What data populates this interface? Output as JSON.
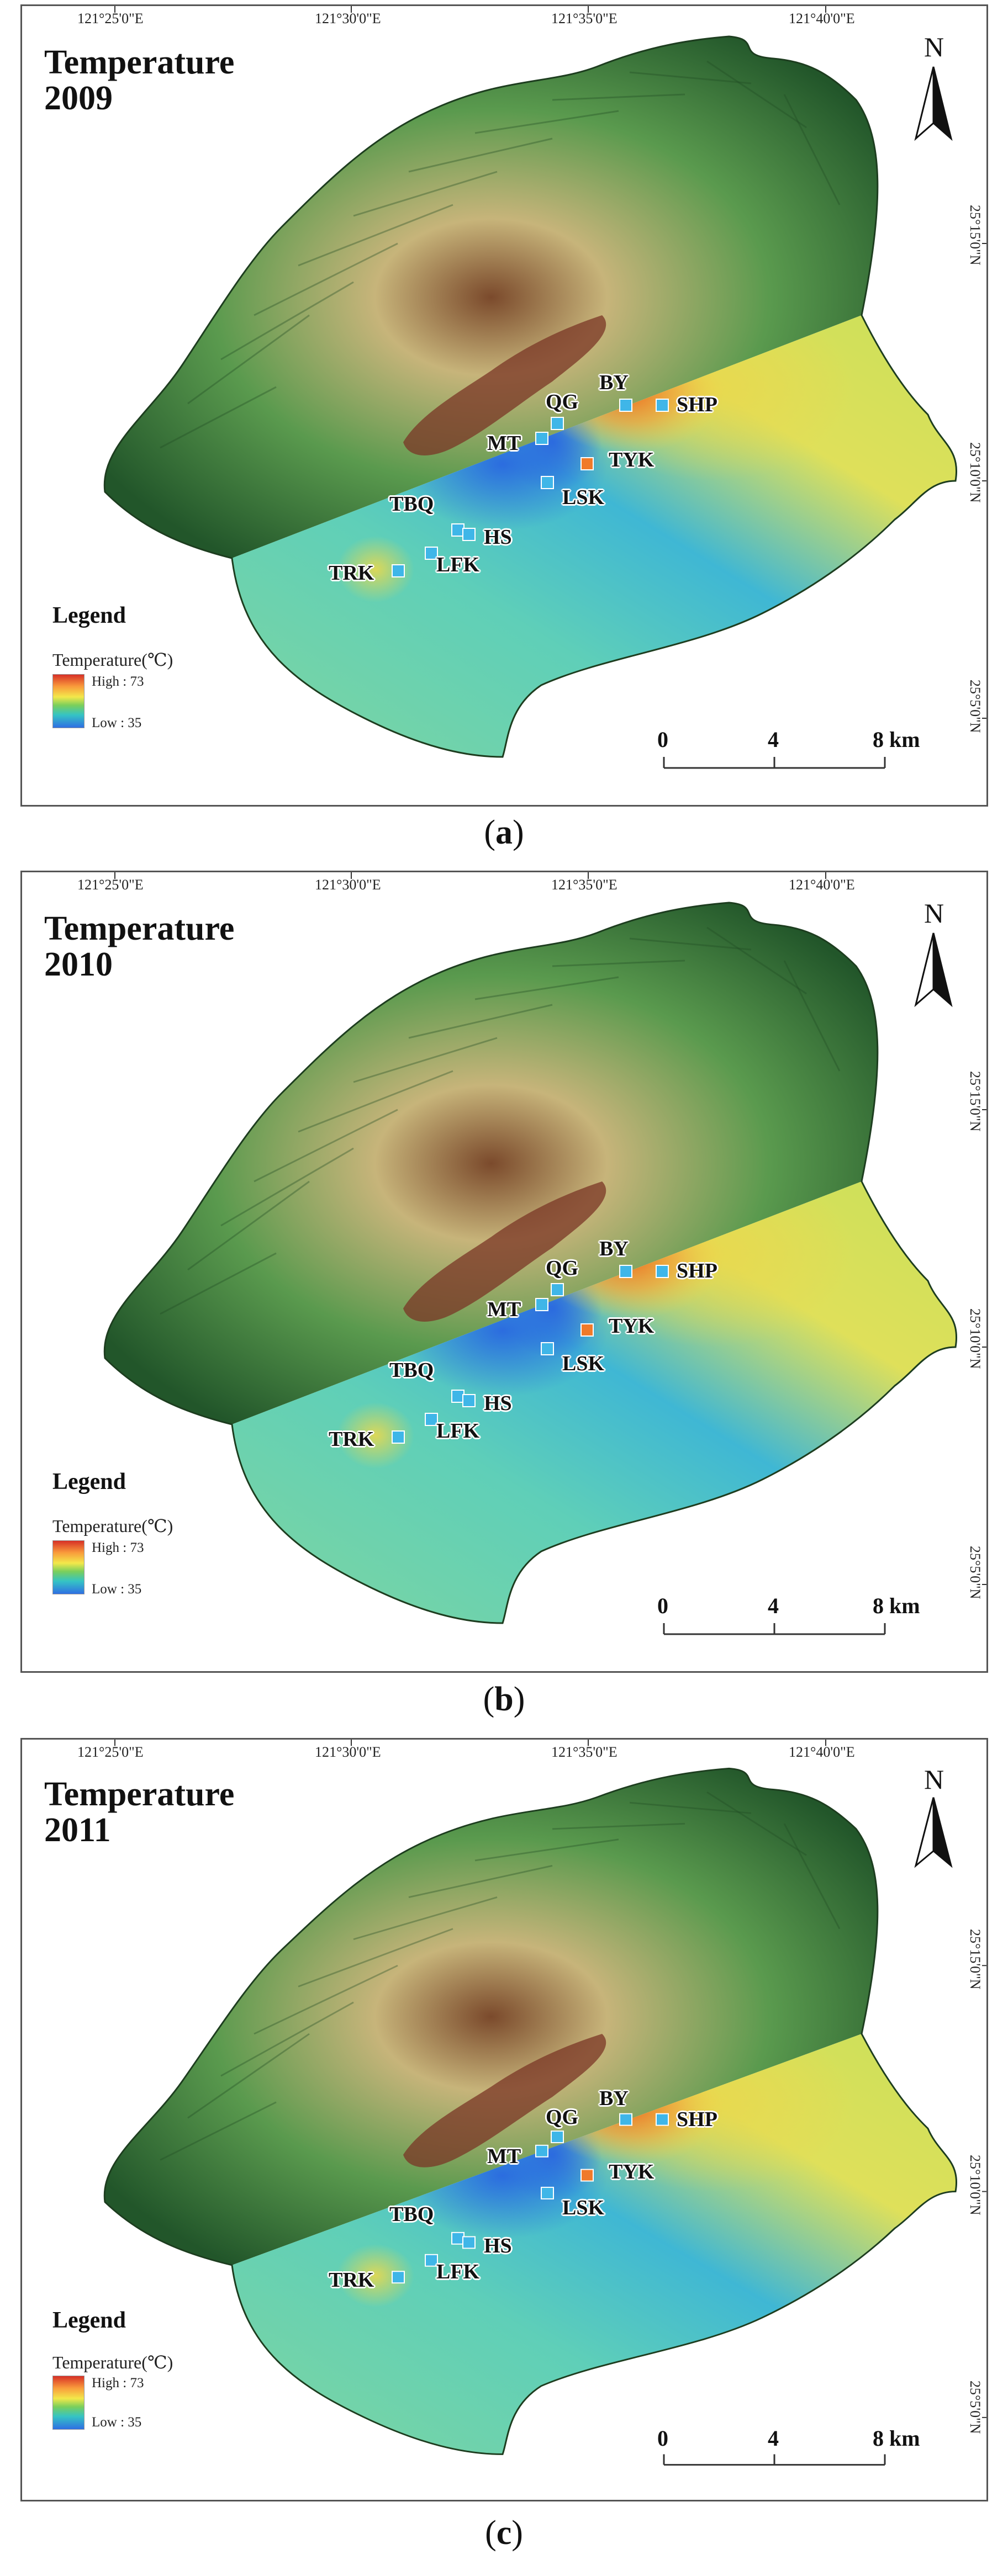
{
  "figure": {
    "north_label": "N",
    "scale": {
      "labels": [
        "0",
        "4",
        "8 km"
      ]
    },
    "longitude_labels": [
      "121°25'0\"E",
      "121°30'0\"E",
      "121°35'0\"E",
      "121°40'0\"E"
    ],
    "latitude_labels": [
      "25°15'0\"N",
      "25°10'0\"N",
      "25°5'0\"N"
    ],
    "legend": {
      "title": "Legend",
      "subtitle": "Temperature(℃)",
      "high": "High : 73",
      "low": "Low : 35"
    },
    "sites": [
      "BY",
      "QG",
      "SHP",
      "MT",
      "TYK",
      "LSK",
      "TBQ",
      "HS",
      "TRK",
      "LFK"
    ]
  },
  "panels": [
    {
      "id": "a",
      "caption_letter": "a",
      "title_line1": "Temperature",
      "title_line2": "2009"
    },
    {
      "id": "b",
      "caption_letter": "b",
      "title_line1": "Temperature",
      "title_line2": "2010"
    },
    {
      "id": "c",
      "caption_letter": "c",
      "title_line1": "Temperature",
      "title_line2": "2011"
    }
  ],
  "colors": {
    "mountain_dark": "#2f6a33",
    "mountain_mid": "#b9a86a",
    "mountain_peak": "#8a3a2a",
    "plain_green": "#7fd49a",
    "cool_blue": "#2f8ee0",
    "warm_orange": "#f28a2a",
    "warm_yellow": "#e6e04a",
    "marker": "#3fb6e8"
  }
}
